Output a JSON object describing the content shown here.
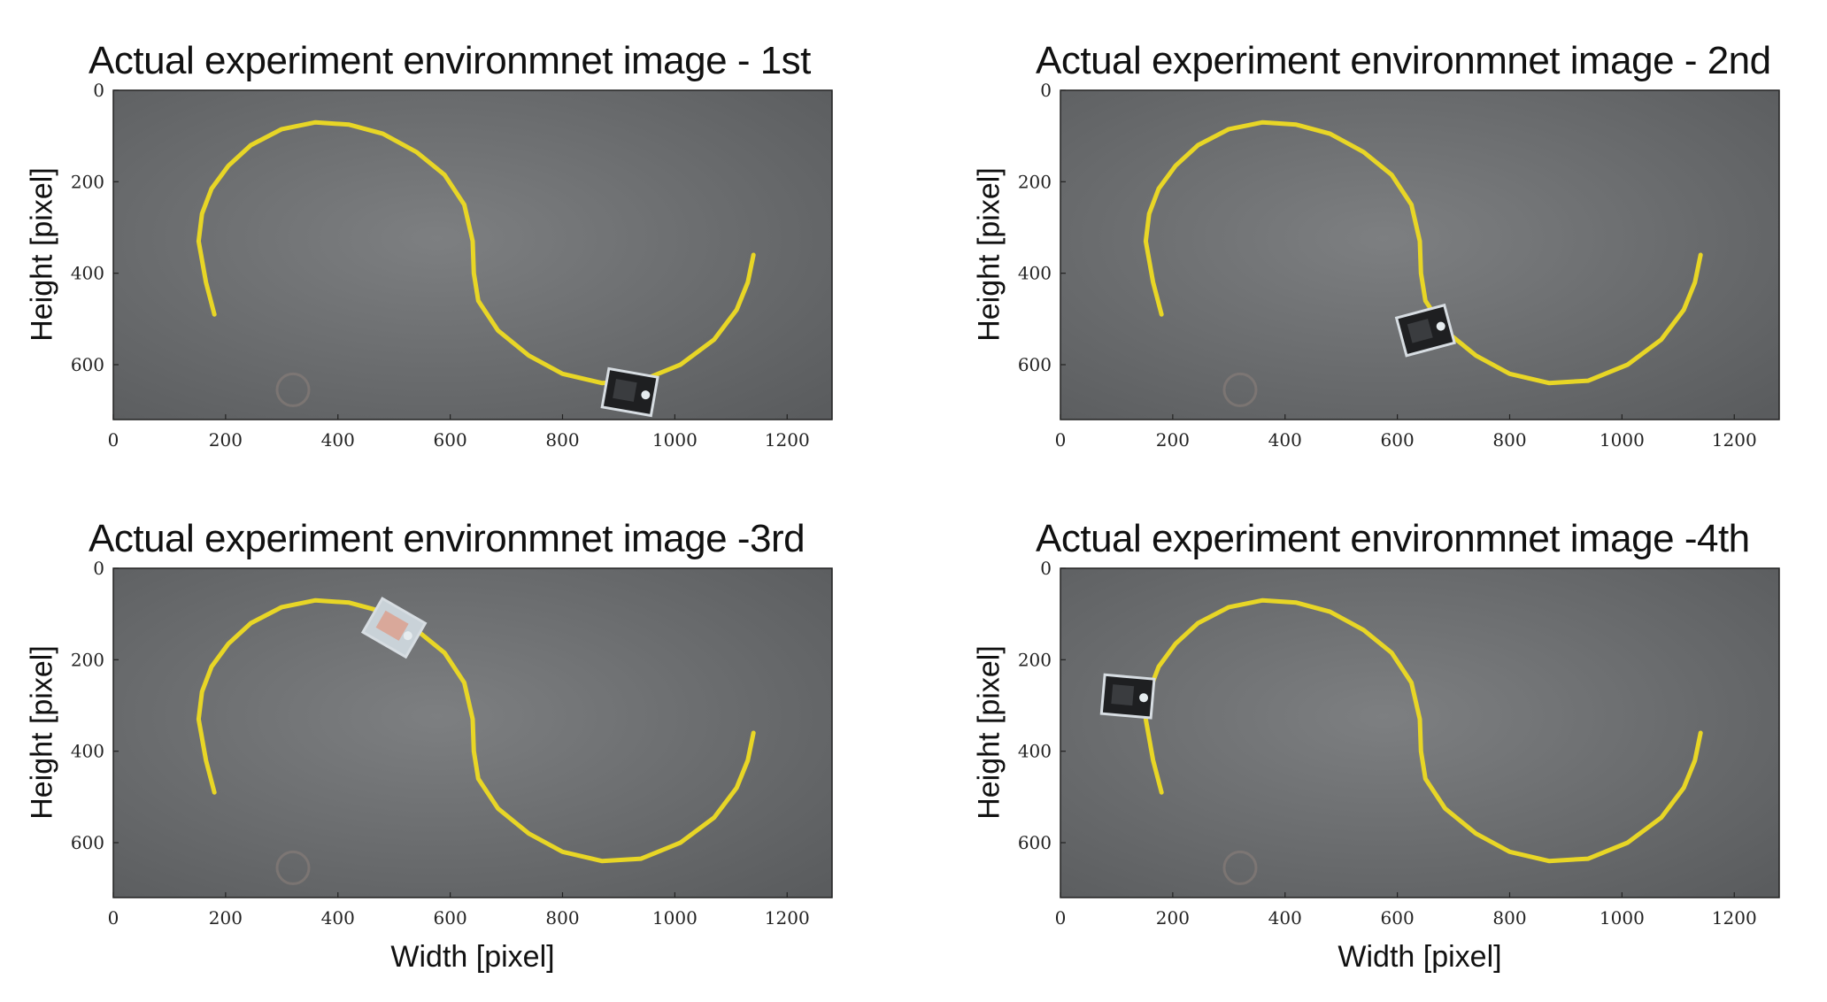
{
  "figure": {
    "panels": [
      {
        "title": "Actual experiment environmnet image - 1st",
        "ylabel": "Height [pixel]",
        "xlabel": "",
        "robot": {
          "x": 920,
          "y": 660,
          "angle": 10,
          "variant": "dark"
        }
      },
      {
        "title": "Actual experiment environmnet image - 2nd",
        "ylabel": "Height [pixel]",
        "xlabel": "",
        "robot": {
          "x": 650,
          "y": 525,
          "angle": -15,
          "variant": "dark"
        }
      },
      {
        "title": "Actual experiment environmnet image -3rd",
        "ylabel": "Height [pixel]",
        "xlabel": "Width [pixel]",
        "robot": {
          "x": 500,
          "y": 130,
          "angle": 30,
          "variant": "light"
        }
      },
      {
        "title": "Actual experiment environmnet image -4th",
        "ylabel": "Height [pixel]",
        "xlabel": "Width [pixel]",
        "robot": {
          "x": 120,
          "y": 280,
          "angle": 5,
          "variant": "dark"
        }
      }
    ],
    "x_ticks": [
      "0",
      "200",
      "400",
      "600",
      "800",
      "1000",
      "1200"
    ],
    "y_ticks": [
      "0",
      "200",
      "400",
      "600"
    ],
    "x_range": [
      0,
      1280
    ],
    "y_range": [
      0,
      720
    ],
    "track_path": [
      [
        180,
        490
      ],
      [
        165,
        420
      ],
      [
        152,
        330
      ],
      [
        158,
        270
      ],
      [
        175,
        215
      ],
      [
        205,
        165
      ],
      [
        245,
        120
      ],
      [
        300,
        85
      ],
      [
        360,
        70
      ],
      [
        420,
        75
      ],
      [
        480,
        95
      ],
      [
        540,
        135
      ],
      [
        590,
        185
      ],
      [
        625,
        250
      ],
      [
        640,
        330
      ],
      [
        642,
        400
      ],
      [
        650,
        460
      ],
      [
        685,
        525
      ],
      [
        740,
        580
      ],
      [
        800,
        620
      ],
      [
        870,
        640
      ],
      [
        940,
        635
      ],
      [
        1010,
        600
      ],
      [
        1070,
        545
      ],
      [
        1110,
        480
      ],
      [
        1130,
        420
      ],
      [
        1140,
        360
      ]
    ],
    "colors": {
      "ground": "#6f7173",
      "track": "#e8d626",
      "axis": "#222222"
    }
  }
}
